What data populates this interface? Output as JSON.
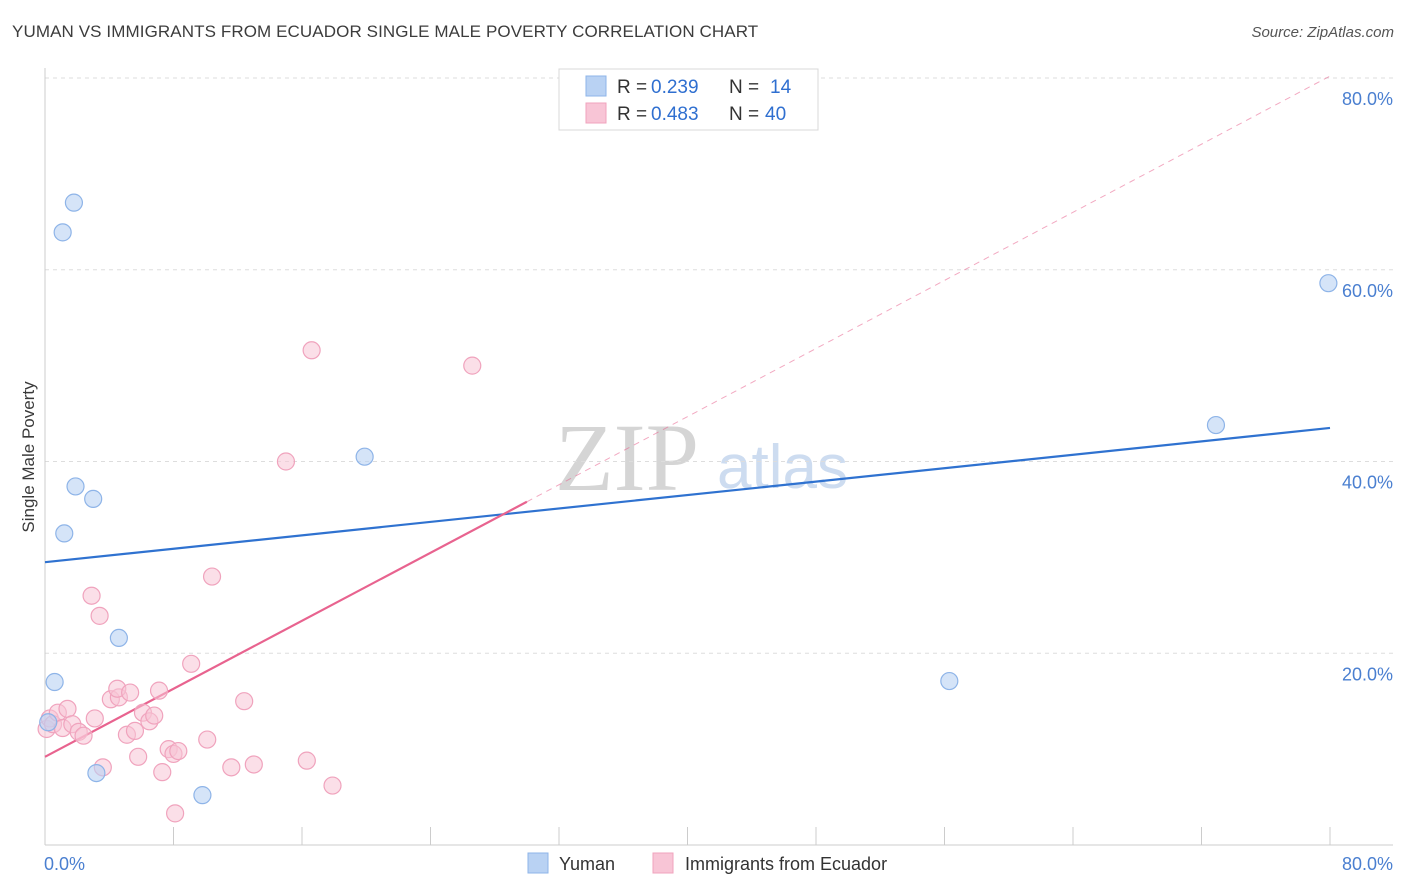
{
  "title": "YUMAN VS IMMIGRANTS FROM ECUADOR SINGLE MALE POVERTY CORRELATION CHART",
  "source": "Source: ZipAtlas.com",
  "watermark": {
    "zip": "ZIP",
    "atlas": "atlas"
  },
  "colors": {
    "yuman_fill": "#b9d2f3",
    "yuman_stroke": "#8eb4e8",
    "yuman_line": "#2f72d0",
    "ecuador_fill": "#f8c5d6",
    "ecuador_stroke": "#f0a3bd",
    "ecuador_line": "#e8638f",
    "grid": "#dddddd",
    "tick_text": "#4a7fd0"
  },
  "legend": {
    "rows": [
      {
        "r_label": "R = ",
        "r_value": "0.239",
        "n_label": "N = ",
        "n_value": "14"
      },
      {
        "r_label": "R = ",
        "r_value": "0.483",
        "n_label": "N = ",
        "n_value": "40"
      }
    ]
  },
  "bottom_legend": {
    "yuman": "Yuman",
    "ecuador": "Immigrants from Ecuador"
  },
  "chart_data": {
    "type": "scatter",
    "title": "YUMAN VS IMMIGRANTS FROM ECUADOR SINGLE MALE POVERTY CORRELATION CHART",
    "xlabel": "",
    "ylabel": "Single Male Poverty",
    "xlim": [
      0,
      80
    ],
    "ylim": [
      0,
      80
    ],
    "x_tick_labels": [
      "0.0%",
      "80.0%"
    ],
    "y_ticks": [
      {
        "value": 20,
        "label": "20.0%"
      },
      {
        "value": 40,
        "label": "40.0%"
      },
      {
        "value": 60,
        "label": "60.0%"
      },
      {
        "value": 80,
        "label": "80.0%"
      }
    ],
    "series": [
      {
        "name": "Yuman",
        "r": 0.239,
        "n": 14,
        "points": [
          [
            0.2,
            12.8
          ],
          [
            0.6,
            17.0
          ],
          [
            1.1,
            63.9
          ],
          [
            1.8,
            67.0
          ],
          [
            1.2,
            32.5
          ],
          [
            1.9,
            37.4
          ],
          [
            3.0,
            36.1
          ],
          [
            4.6,
            21.6
          ],
          [
            3.2,
            7.5
          ],
          [
            9.8,
            5.2
          ],
          [
            19.9,
            40.5
          ],
          [
            56.3,
            17.1
          ],
          [
            72.9,
            43.8
          ],
          [
            79.9,
            58.6
          ]
        ],
        "trend": {
          "x0": 0,
          "y0": 29.5,
          "x1": 80,
          "y1": 43.5
        }
      },
      {
        "name": "Immigrants from Ecuador",
        "r": 0.483,
        "n": 40,
        "points": [
          [
            0.1,
            12.1
          ],
          [
            0.3,
            13.2
          ],
          [
            0.5,
            12.6
          ],
          [
            0.8,
            13.8
          ],
          [
            1.1,
            12.2
          ],
          [
            1.4,
            14.2
          ],
          [
            1.7,
            12.6
          ],
          [
            2.1,
            11.8
          ],
          [
            2.4,
            11.4
          ],
          [
            3.1,
            13.2
          ],
          [
            3.6,
            8.1
          ],
          [
            2.9,
            26.0
          ],
          [
            3.4,
            23.9
          ],
          [
            4.1,
            15.2
          ],
          [
            4.6,
            15.4
          ],
          [
            4.5,
            16.3
          ],
          [
            5.1,
            11.5
          ],
          [
            5.3,
            15.9
          ],
          [
            5.6,
            11.9
          ],
          [
            5.8,
            9.2
          ],
          [
            6.1,
            13.8
          ],
          [
            6.5,
            12.9
          ],
          [
            6.8,
            13.5
          ],
          [
            7.1,
            16.1
          ],
          [
            7.3,
            7.6
          ],
          [
            7.7,
            10.0
          ],
          [
            8.0,
            9.5
          ],
          [
            8.3,
            9.8
          ],
          [
            8.1,
            3.3
          ],
          [
            9.1,
            18.9
          ],
          [
            10.1,
            11.0
          ],
          [
            10.4,
            28.0
          ],
          [
            11.6,
            8.1
          ],
          [
            12.4,
            15.0
          ],
          [
            13.0,
            8.4
          ],
          [
            15.0,
            40.0
          ],
          [
            16.6,
            51.6
          ],
          [
            16.3,
            8.8
          ],
          [
            17.9,
            6.2
          ],
          [
            26.6,
            50.0
          ]
        ],
        "trend": {
          "x0": 0,
          "y0": 9.2,
          "x1": 30,
          "y1": 35.8
        },
        "trend_extended": {
          "x0": 30,
          "y0": 35.8,
          "x1": 80,
          "y1": 80.2
        }
      }
    ]
  }
}
